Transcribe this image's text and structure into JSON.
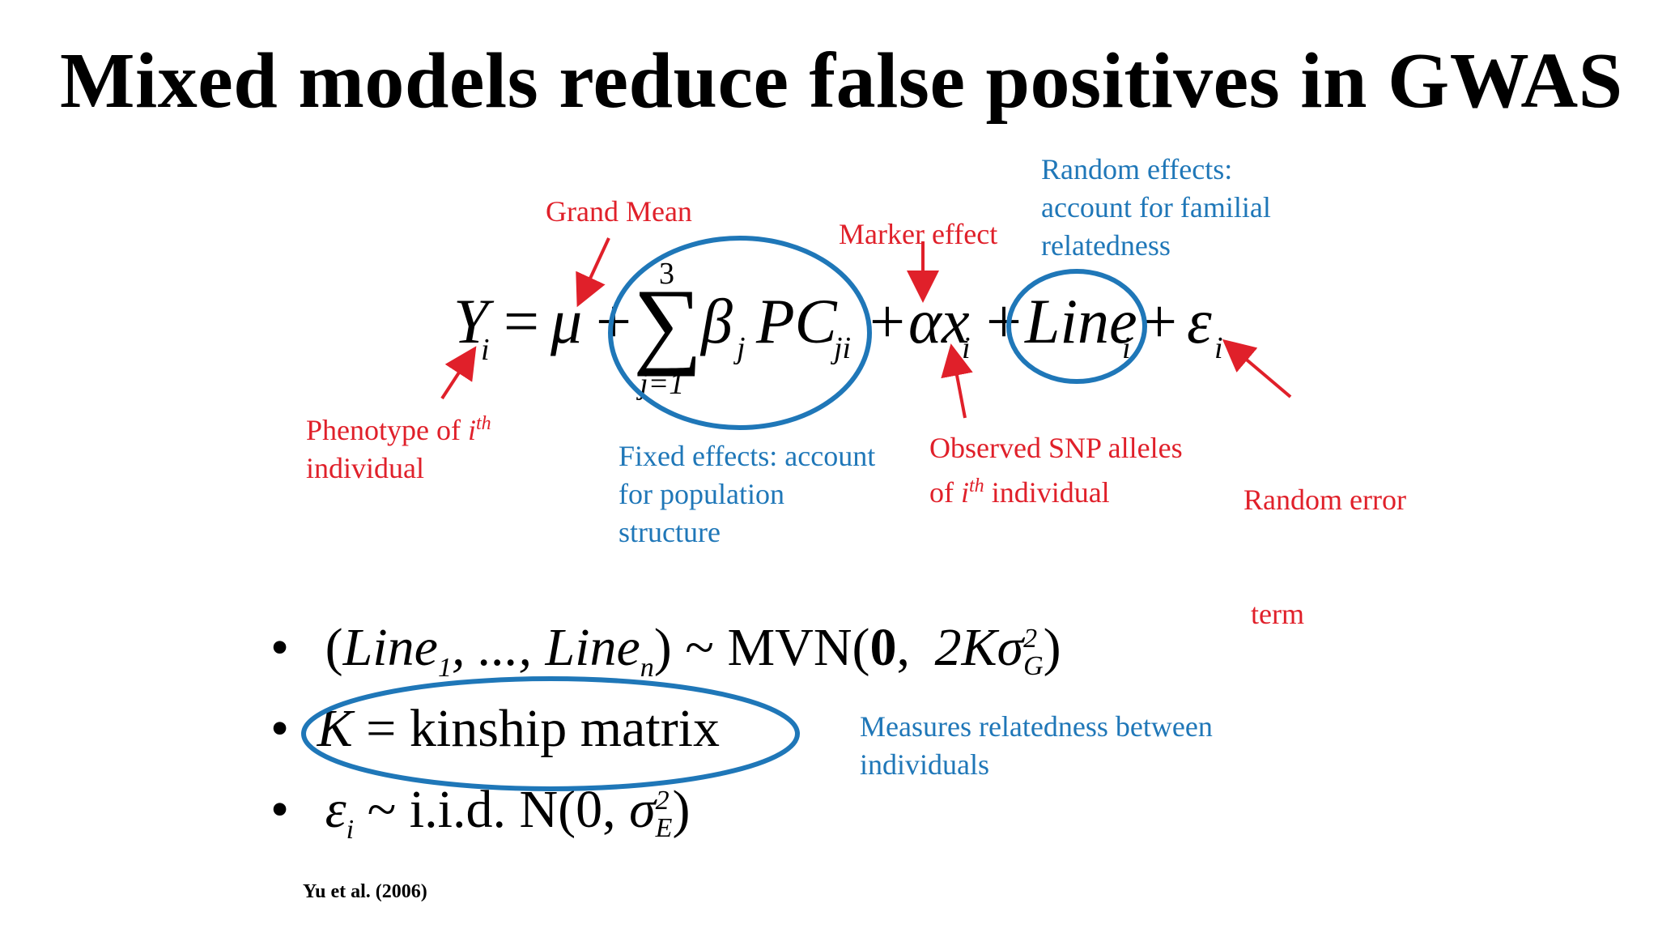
{
  "slide": {
    "title": "Mixed models reduce false positives in GWAS",
    "citation": "Yu et al. (2006)"
  },
  "equation": {
    "Y": "Y",
    "Y_sub": "i",
    "eq_sign": "=",
    "mu": "μ",
    "plus1": "+",
    "sum_sign": "∑",
    "sum_upper": "3",
    "sum_lower": "j=1",
    "beta": "β",
    "beta_sub": "j",
    "PC": "PC",
    "PC_sub": "ji",
    "plus2": "+",
    "alpha_x": "αx",
    "x_sub": "i",
    "plus3": "+",
    "line": "Line",
    "line_sub": "i",
    "plus4": "+",
    "epsilon": "ε",
    "epsilon_sub": "i"
  },
  "annotations": {
    "grand_mean": "Grand Mean",
    "marker_effect": "Marker effect",
    "random_effects": [
      "Random effects:",
      "account for familial",
      "relatedness"
    ],
    "phenotype_prefix": "Phenotype of ",
    "phenotype_i": "i",
    "phenotype_th": "th",
    "phenotype_line2": "individual",
    "fixed_effects": [
      "Fixed effects: account",
      "for population",
      "structure"
    ],
    "observed_line1": "Observed SNP alleles",
    "observed_of": "of ",
    "observed_i": "i",
    "observed_th": "th",
    "observed_rest": " individual",
    "random_error": [
      "Random error",
      " term"
    ],
    "measures": [
      "Measures relatedness between",
      "individuals"
    ]
  },
  "bullets": {
    "b1": {
      "bullet": "•",
      "open": "(",
      "line1": "Line",
      "line1_sub": "1",
      "dots": ", ..., ",
      "linen": "Line",
      "linen_sub": "n",
      "close": ")",
      "tilde": " ~ MVN(",
      "zero": "0",
      "comma": ", ",
      "twoK": "2K",
      "sigma": "σ",
      "sigma_sup": "2",
      "sigma_sub": "G",
      "end": ")"
    },
    "b2": {
      "bullet": "•",
      "K": "K",
      "rest": " = kinship matrix"
    },
    "b3": {
      "bullet": "•",
      "eps": "ε",
      "eps_sub": "i",
      "tilde": " ~ i.i.d. N(0, ",
      "sigma": "σ",
      "sigma_sup": "2",
      "sigma_sub": "E",
      "end": ")"
    }
  },
  "colors": {
    "red": "#e0202a",
    "blue": "#1f77b8"
  }
}
